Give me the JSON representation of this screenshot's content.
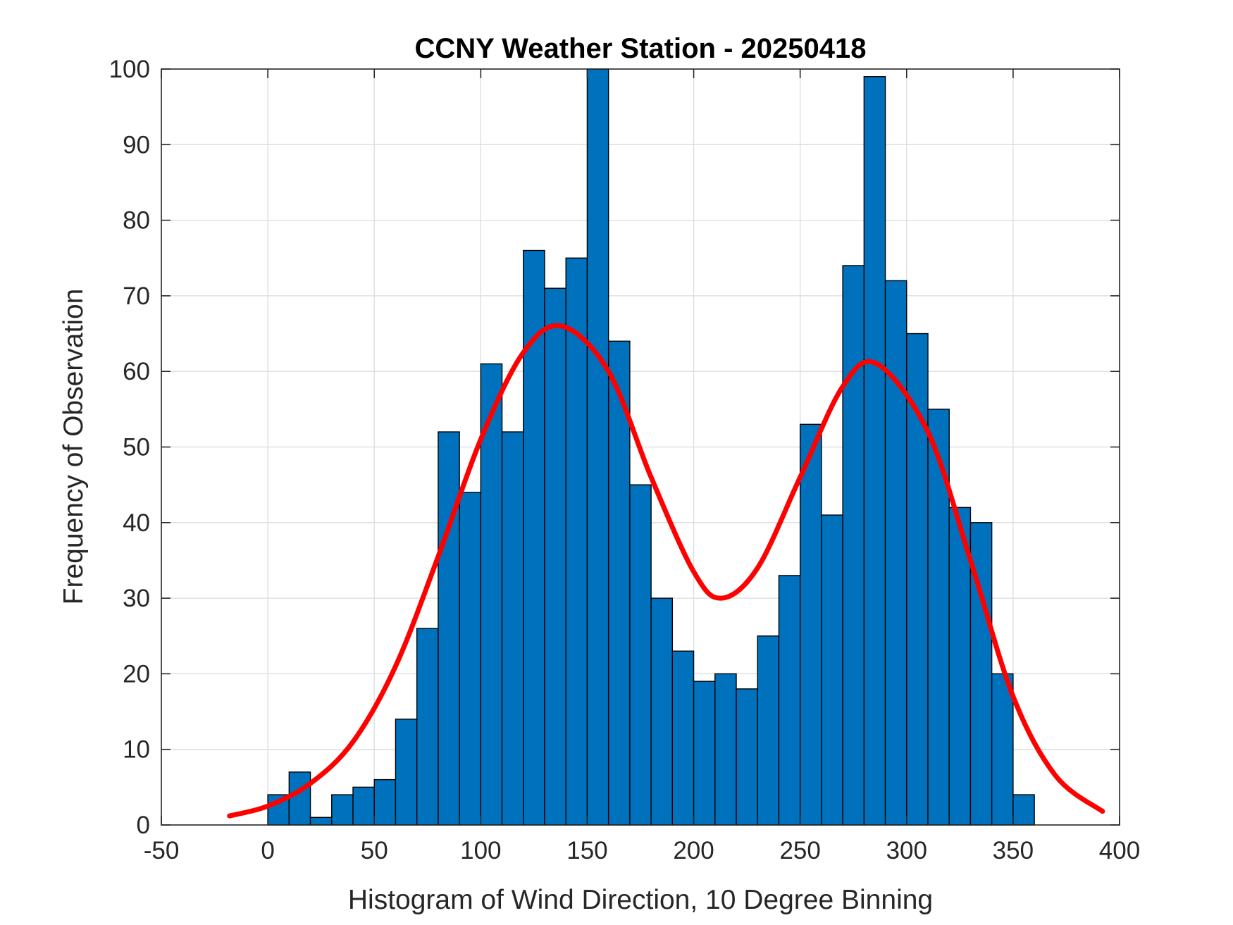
{
  "chart_data": {
    "type": "bar",
    "title": "CCNY Weather Station - 20250418",
    "xlabel": "Histogram of Wind Direction, 10 Degree Binning",
    "ylabel": "Frequency of Observation",
    "xlim": [
      -50,
      400
    ],
    "ylim": [
      0,
      100
    ],
    "xticks": [
      -50,
      0,
      50,
      100,
      150,
      200,
      250,
      300,
      350,
      400
    ],
    "yticks": [
      0,
      10,
      20,
      30,
      40,
      50,
      60,
      70,
      80,
      90,
      100
    ],
    "grid": true,
    "bin_width": 10,
    "bin_edges_start": [
      0,
      10,
      20,
      30,
      40,
      50,
      60,
      70,
      80,
      90,
      100,
      110,
      120,
      130,
      140,
      150,
      160,
      170,
      180,
      190,
      200,
      210,
      220,
      230,
      240,
      250,
      260,
      270,
      280,
      290,
      300,
      310,
      320,
      330,
      340,
      350
    ],
    "values": [
      4,
      7,
      1,
      4,
      5,
      6,
      14,
      26,
      52,
      44,
      61,
      52,
      76,
      71,
      75,
      100,
      64,
      45,
      30,
      23,
      19,
      20,
      18,
      25,
      33,
      53,
      41,
      74,
      99,
      72,
      65,
      55,
      42,
      40,
      20,
      4
    ],
    "bar_color": "#0072BD",
    "fit_curve": {
      "type": "bimodal-gaussian",
      "color": "#FF0000",
      "x_range": [
        -18,
        392
      ],
      "points": [
        [
          -18,
          1.2
        ],
        [
          0,
          2.5
        ],
        [
          20,
          5.5
        ],
        [
          40,
          11
        ],
        [
          60,
          21
        ],
        [
          80,
          35.5
        ],
        [
          100,
          51
        ],
        [
          120,
          62.5
        ],
        [
          138,
          66
        ],
        [
          160,
          60
        ],
        [
          180,
          46
        ],
        [
          200,
          33.5
        ],
        [
          213,
          30
        ],
        [
          230,
          34
        ],
        [
          250,
          46
        ],
        [
          270,
          58
        ],
        [
          286,
          61
        ],
        [
          310,
          52
        ],
        [
          330,
          35
        ],
        [
          350,
          17
        ],
        [
          370,
          6.5
        ],
        [
          392,
          1.8
        ]
      ]
    }
  }
}
